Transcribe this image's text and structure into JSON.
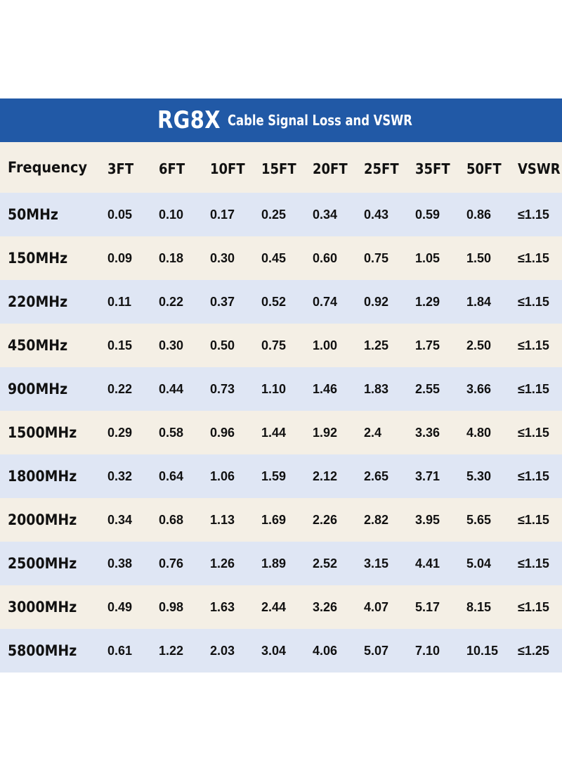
{
  "title": {
    "main": "RG8X",
    "subtitle": "Cable Signal Loss and VSWR"
  },
  "colors": {
    "banner": "#2159a6",
    "row_cream": "#f4efe5",
    "row_blue": "#dfe6f4",
    "text": "#111111"
  },
  "table": {
    "headers": [
      "Frequency",
      "3FT",
      "6FT",
      "10FT",
      "15FT",
      "20FT",
      "25FT",
      "35FT",
      "50FT",
      "VSWR"
    ],
    "rows": [
      [
        "50MHz",
        "0.05",
        "0.10",
        "0.17",
        "0.25",
        "0.34",
        "0.43",
        "0.59",
        "0.86",
        "≤1.15"
      ],
      [
        "150MHz",
        "0.09",
        "0.18",
        "0.30",
        "0.45",
        "0.60",
        "0.75",
        "1.05",
        "1.50",
        "≤1.15"
      ],
      [
        "220MHz",
        "0.11",
        "0.22",
        "0.37",
        "0.52",
        "0.74",
        "0.92",
        "1.29",
        "1.84",
        "≤1.15"
      ],
      [
        "450MHz",
        "0.15",
        "0.30",
        "0.50",
        "0.75",
        "1.00",
        "1.25",
        "1.75",
        "2.50",
        "≤1.15"
      ],
      [
        "900MHz",
        "0.22",
        "0.44",
        "0.73",
        "1.10",
        "1.46",
        "1.83",
        "2.55",
        "3.66",
        "≤1.15"
      ],
      [
        "1500MHz",
        "0.29",
        "0.58",
        "0.96",
        "1.44",
        "1.92",
        "2.4",
        "3.36",
        "4.80",
        "≤1.15"
      ],
      [
        "1800MHz",
        "0.32",
        "0.64",
        "1.06",
        "1.59",
        "2.12",
        "2.65",
        "3.71",
        "5.30",
        "≤1.15"
      ],
      [
        "2000MHz",
        "0.34",
        "0.68",
        "1.13",
        "1.69",
        "2.26",
        "2.82",
        "3.95",
        "5.65",
        "≤1.15"
      ],
      [
        "2500MHz",
        "0.38",
        "0.76",
        "1.26",
        "1.89",
        "2.52",
        "3.15",
        "4.41",
        "5.04",
        "≤1.15"
      ],
      [
        "3000MHz",
        "0.49",
        "0.98",
        "1.63",
        "2.44",
        "3.26",
        "4.07",
        "5.17",
        "8.15",
        "≤1.15"
      ],
      [
        "5800MHz",
        "0.61",
        "1.22",
        "2.03",
        "3.04",
        "4.06",
        "5.07",
        "7.10",
        "10.15",
        "≤1.25"
      ]
    ]
  }
}
